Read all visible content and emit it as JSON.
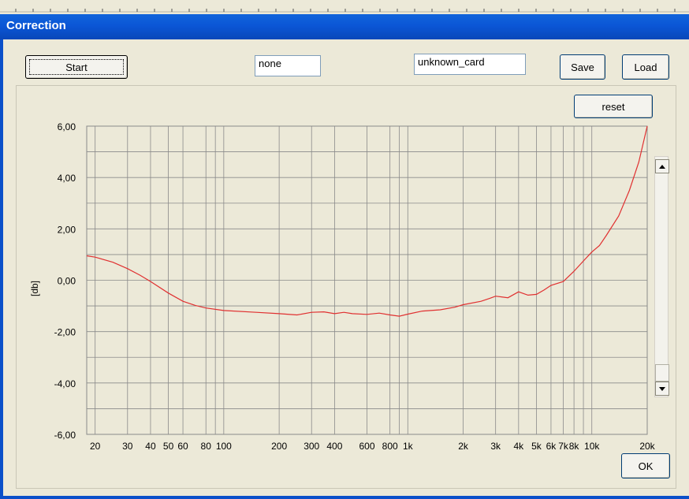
{
  "window": {
    "title": "Correction"
  },
  "toolbar": {
    "start_label": "Start",
    "preset_value": "none",
    "card_value": "unknown_card",
    "save_label": "Save",
    "load_label": "Load"
  },
  "graph": {
    "reset_label": "reset",
    "ok_label": "OK"
  },
  "colors": {
    "title_bar": "#0b56d6",
    "curve": "#e03030",
    "grid": "#8a8a8a"
  },
  "icons": {
    "scroll_up": "arrow-up-icon",
    "scroll_down": "arrow-down-icon"
  },
  "chart_data": {
    "type": "line",
    "xscale": "log",
    "xlim": [
      18,
      20000
    ],
    "ylim": [
      -6,
      6
    ],
    "ylabel": "[db]",
    "grid": true,
    "y_ticks": [
      "6,00",
      "4,00",
      "2,00",
      "0,00",
      "-2,00",
      "-4,00",
      "-6,00"
    ],
    "y_tick_values": [
      6,
      4,
      2,
      0,
      -2,
      -4,
      -6
    ],
    "x_ticks": [
      {
        "label": "20",
        "value": 20
      },
      {
        "label": "30",
        "value": 30
      },
      {
        "label": "40",
        "value": 40
      },
      {
        "label": "50",
        "value": 50
      },
      {
        "label": "60",
        "value": 60
      },
      {
        "label": "80",
        "value": 80
      },
      {
        "label": "100",
        "value": 100
      },
      {
        "label": "200",
        "value": 200
      },
      {
        "label": "300",
        "value": 300
      },
      {
        "label": "400",
        "value": 400
      },
      {
        "label": "600",
        "value": 600
      },
      {
        "label": "800",
        "value": 800
      },
      {
        "label": "1k",
        "value": 1000
      },
      {
        "label": "2k",
        "value": 2000
      },
      {
        "label": "3k",
        "value": 3000
      },
      {
        "label": "4k",
        "value": 4000
      },
      {
        "label": "5k",
        "value": 5000
      },
      {
        "label": "6k",
        "value": 6000
      },
      {
        "label": "7k",
        "value": 7000
      },
      {
        "label": "8k",
        "value": 8000
      },
      {
        "label": "10k",
        "value": 10000
      },
      {
        "label": "20k",
        "value": 20000
      }
    ],
    "series": [
      {
        "x": [
          18,
          20,
          25,
          30,
          35,
          40,
          50,
          60,
          70,
          80,
          100,
          150,
          200,
          250,
          300,
          350,
          400,
          450,
          500,
          600,
          700,
          800,
          900,
          1000,
          1200,
          1500,
          1800,
          2000,
          2500,
          2800,
          3000,
          3500,
          4000,
          4500,
          5000,
          5500,
          6000,
          7000,
          8000,
          9000,
          10000,
          11000,
          12000,
          14000,
          16000,
          18000,
          20000
        ],
        "y": [
          0.95,
          0.9,
          0.7,
          0.45,
          0.2,
          -0.05,
          -0.5,
          -0.82,
          -0.98,
          -1.08,
          -1.18,
          -1.25,
          -1.3,
          -1.35,
          -1.25,
          -1.23,
          -1.3,
          -1.25,
          -1.3,
          -1.33,
          -1.28,
          -1.35,
          -1.4,
          -1.32,
          -1.2,
          -1.15,
          -1.05,
          -0.95,
          -0.82,
          -0.7,
          -0.62,
          -0.68,
          -0.45,
          -0.58,
          -0.55,
          -0.38,
          -0.2,
          -0.05,
          0.35,
          0.75,
          1.1,
          1.35,
          1.75,
          2.5,
          3.5,
          4.6,
          6.0
        ]
      }
    ]
  }
}
